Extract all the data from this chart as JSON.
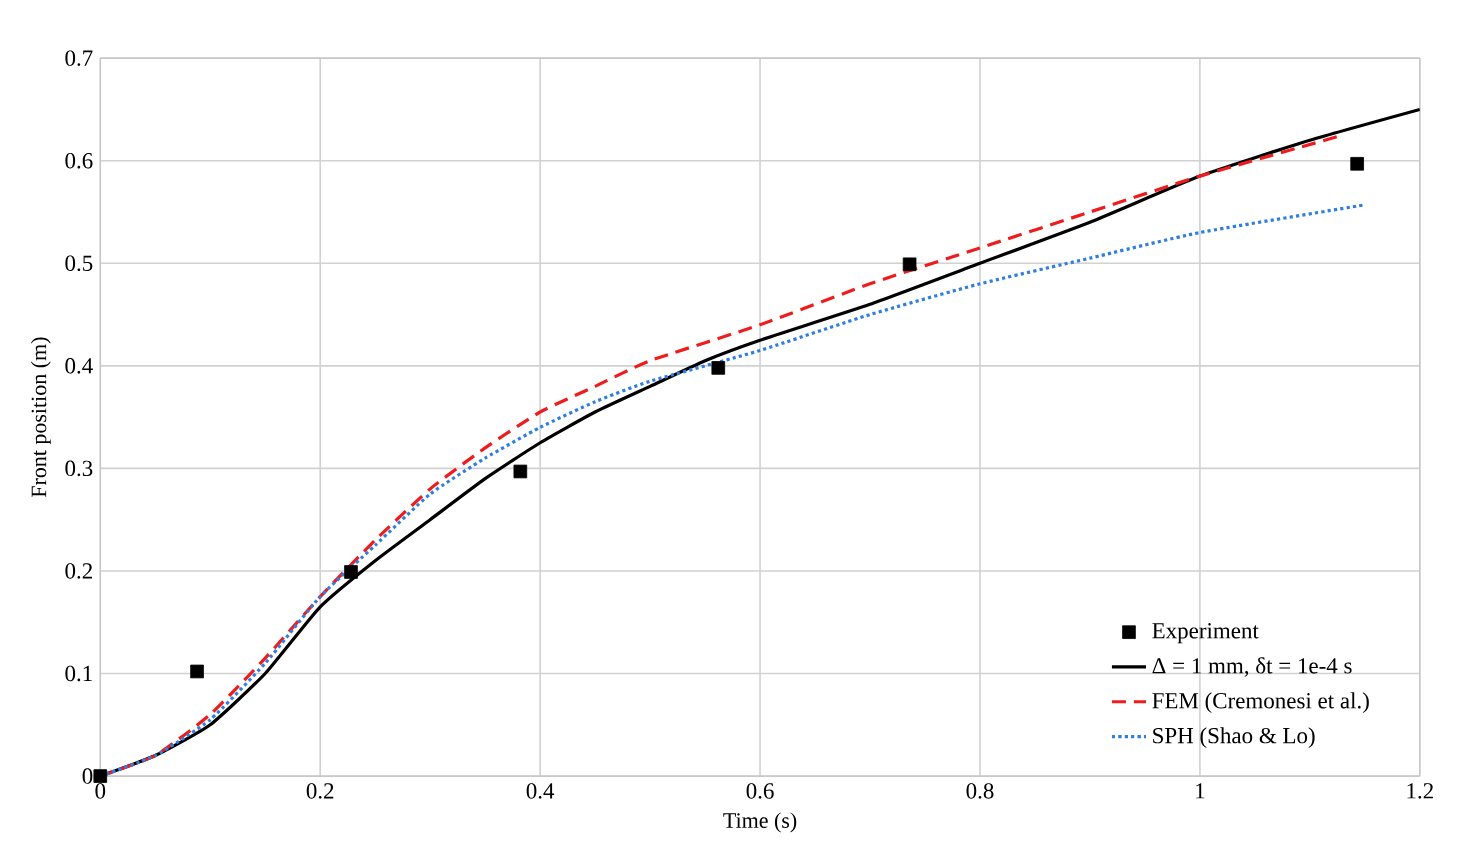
{
  "chart_data": {
    "type": "line",
    "xlabel": "Time (s)",
    "ylabel": "Front position (m)",
    "xlim": [
      0,
      1.2
    ],
    "ylim": [
      0,
      0.7
    ],
    "xticks": [
      0,
      0.2,
      0.4,
      0.6,
      0.8,
      1,
      1.2
    ],
    "yticks": [
      0,
      0.1,
      0.2,
      0.3,
      0.4,
      0.5,
      0.6,
      0.7
    ],
    "grid": true,
    "legend": "bottom right",
    "series": [
      {
        "name": "Experiment",
        "type": "scatter",
        "marker": "square",
        "color": "#000000",
        "x": [
          0,
          0.088,
          0.228,
          0.382,
          0.562,
          0.736,
          1.143
        ],
        "values": [
          0,
          0.102,
          0.199,
          0.297,
          0.398,
          0.499,
          0.597
        ]
      },
      {
        "name": "Δ = 1 mm, δt = 1e-4 s",
        "line_style": "solid",
        "color": "#000000",
        "x": [
          0,
          0.05,
          0.1,
          0.15,
          0.2,
          0.25,
          0.3,
          0.35,
          0.4,
          0.45,
          0.5,
          0.55,
          0.6,
          0.7,
          0.8,
          0.9,
          1.0,
          1.1,
          1.2
        ],
        "values": [
          0,
          0.02,
          0.05,
          0.1,
          0.165,
          0.21,
          0.25,
          0.29,
          0.325,
          0.355,
          0.38,
          0.405,
          0.425,
          0.46,
          0.5,
          0.54,
          0.585,
          0.62,
          0.65
        ]
      },
      {
        "name": "FEM (Cremonesi et al.)",
        "line_style": "dashed",
        "color": "#ee1c1c",
        "x": [
          0,
          0.05,
          0.1,
          0.15,
          0.2,
          0.25,
          0.3,
          0.35,
          0.4,
          0.45,
          0.5,
          0.6,
          0.7,
          0.8,
          0.9,
          1.0,
          1.13
        ],
        "values": [
          0,
          0.02,
          0.06,
          0.115,
          0.175,
          0.23,
          0.28,
          0.32,
          0.355,
          0.38,
          0.405,
          0.44,
          0.48,
          0.515,
          0.55,
          0.585,
          0.625
        ]
      },
      {
        "name": "SPH (Shao & Lo)",
        "line_style": "dotted",
        "color": "#2f7fe0",
        "x": [
          0,
          0.05,
          0.1,
          0.15,
          0.2,
          0.25,
          0.3,
          0.35,
          0.4,
          0.45,
          0.5,
          0.6,
          0.7,
          0.8,
          0.9,
          1.0,
          1.15
        ],
        "values": [
          0,
          0.02,
          0.055,
          0.11,
          0.175,
          0.225,
          0.275,
          0.31,
          0.34,
          0.365,
          0.385,
          0.415,
          0.45,
          0.48,
          0.505,
          0.53,
          0.557
        ]
      }
    ]
  }
}
